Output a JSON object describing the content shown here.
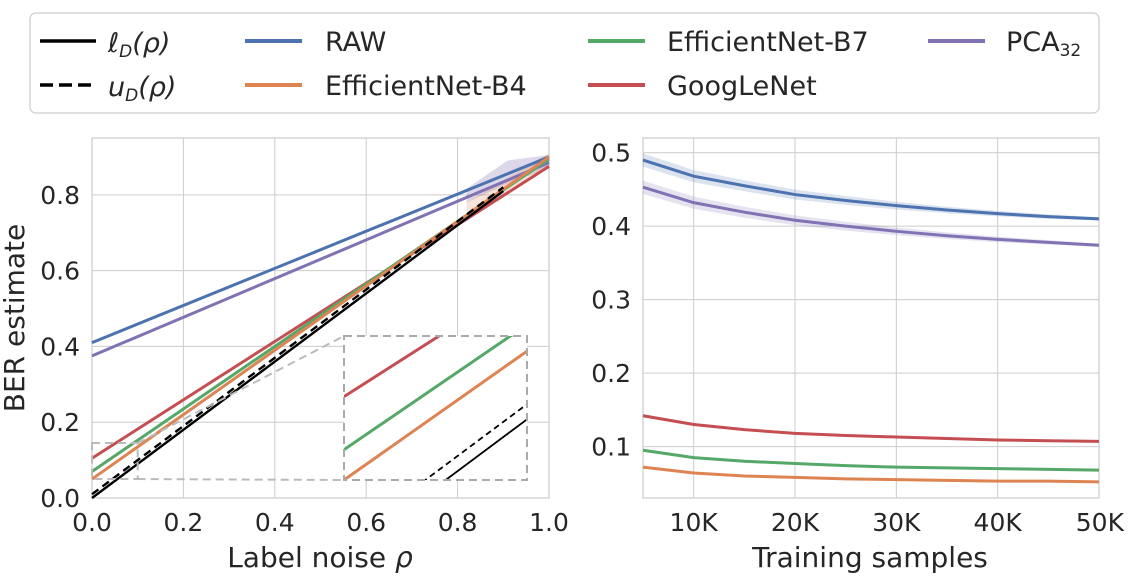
{
  "figure": {
    "ylabel": "BER estimate"
  },
  "legend": {
    "position": "top-center",
    "entries": [
      {
        "key": "lower",
        "label_main": "ℓ",
        "label_sub": "D",
        "label_rest": "(ρ)",
        "style": "solid",
        "color": "#000000"
      },
      {
        "key": "upper",
        "label_main": "u",
        "label_sub": "D",
        "label_rest": "(ρ)",
        "style": "dashed",
        "color": "#000000"
      },
      {
        "key": "raw",
        "label": "RAW",
        "color": "#4c72b0"
      },
      {
        "key": "b4",
        "label": "EfficientNet-B4",
        "color": "#dd8452"
      },
      {
        "key": "b7",
        "label": "EfficientNet-B7",
        "color": "#55a868"
      },
      {
        "key": "goog",
        "label": "GoogLeNet",
        "color": "#c44e52"
      },
      {
        "key": "pca",
        "label_main": "PCA",
        "label_sub": "32",
        "color": "#8172b3"
      }
    ]
  },
  "chart_data": [
    {
      "type": "line",
      "xlabel_main": "Label noise ",
      "xlabel_var": "ρ",
      "ylabel": "BER estimate",
      "xlim": [
        0.0,
        1.0
      ],
      "ylim": [
        0.0,
        0.95
      ],
      "xticks": [
        "0.0",
        "0.2",
        "0.4",
        "0.6",
        "0.8",
        "1.0"
      ],
      "yticks": [
        "0.0",
        "0.2",
        "0.4",
        "0.6",
        "0.8"
      ],
      "grid": true,
      "series": [
        {
          "name": "RAW",
          "color": "#4c72b0",
          "x": [
            0.0,
            1.0
          ],
          "y": [
            0.41,
            0.9
          ]
        },
        {
          "name": "PCA_32",
          "color": "#8172b3",
          "x": [
            0.0,
            1.0
          ],
          "y": [
            0.375,
            0.885
          ]
        },
        {
          "name": "GoogLeNet",
          "color": "#c44e52",
          "x": [
            0.0,
            1.0
          ],
          "y": [
            0.105,
            0.875
          ]
        },
        {
          "name": "EfficientNet-B7",
          "color": "#55a868",
          "x": [
            0.0,
            1.0
          ],
          "y": [
            0.07,
            0.895
          ]
        },
        {
          "name": "EfficientNet-B4",
          "color": "#dd8452",
          "x": [
            0.0,
            1.0
          ],
          "y": [
            0.05,
            0.9
          ]
        },
        {
          "name": "u_D(rho)",
          "color": "#000000",
          "style": "dashed",
          "x": [
            0.0,
            0.9
          ],
          "y": [
            0.01,
            0.82
          ]
        },
        {
          "name": "l_D(rho)",
          "color": "#000000",
          "style": "solid",
          "x": [
            0.0,
            0.9
          ],
          "y": [
            0.0,
            0.81
          ]
        }
      ],
      "inset": {
        "region_x": [
          0.0,
          0.1
        ],
        "region_y": [
          0.05,
          0.145
        ],
        "connected_to": "bottom-right"
      }
    },
    {
      "type": "line",
      "xlabel": "Training samples",
      "xlim": [
        5000,
        50000
      ],
      "ylim": [
        0.03,
        0.52
      ],
      "xtick_values": [
        10000,
        20000,
        30000,
        40000,
        50000
      ],
      "xticks": [
        "10K",
        "20K",
        "30K",
        "40K",
        "50K"
      ],
      "ytick_values": [
        0.1,
        0.2,
        0.3,
        0.4,
        0.5
      ],
      "yticks": [
        "0.1",
        "0.2",
        "0.3",
        "0.4",
        "0.5"
      ],
      "grid": true,
      "series": [
        {
          "name": "RAW",
          "color": "#4c72b0",
          "x": [
            5000,
            10000,
            15000,
            20000,
            25000,
            30000,
            35000,
            40000,
            45000,
            50000
          ],
          "y": [
            0.49,
            0.468,
            0.455,
            0.443,
            0.435,
            0.428,
            0.422,
            0.417,
            0.413,
            0.41
          ]
        },
        {
          "name": "PCA_32",
          "color": "#8172b3",
          "x": [
            5000,
            10000,
            15000,
            20000,
            25000,
            30000,
            35000,
            40000,
            45000,
            50000
          ],
          "y": [
            0.453,
            0.432,
            0.419,
            0.408,
            0.4,
            0.393,
            0.387,
            0.382,
            0.378,
            0.374
          ]
        },
        {
          "name": "GoogLeNet",
          "color": "#c44e52",
          "x": [
            5000,
            10000,
            15000,
            20000,
            25000,
            30000,
            35000,
            40000,
            45000,
            50000
          ],
          "y": [
            0.142,
            0.13,
            0.123,
            0.118,
            0.115,
            0.113,
            0.111,
            0.109,
            0.108,
            0.107
          ]
        },
        {
          "name": "EfficientNet-B7",
          "color": "#55a868",
          "x": [
            5000,
            10000,
            15000,
            20000,
            25000,
            30000,
            35000,
            40000,
            45000,
            50000
          ],
          "y": [
            0.095,
            0.085,
            0.08,
            0.077,
            0.074,
            0.072,
            0.071,
            0.07,
            0.069,
            0.068
          ]
        },
        {
          "name": "EfficientNet-B4",
          "color": "#dd8452",
          "x": [
            5000,
            10000,
            15000,
            20000,
            25000,
            30000,
            35000,
            40000,
            45000,
            50000
          ],
          "y": [
            0.072,
            0.064,
            0.06,
            0.058,
            0.056,
            0.055,
            0.054,
            0.053,
            0.053,
            0.052
          ]
        }
      ]
    }
  ]
}
